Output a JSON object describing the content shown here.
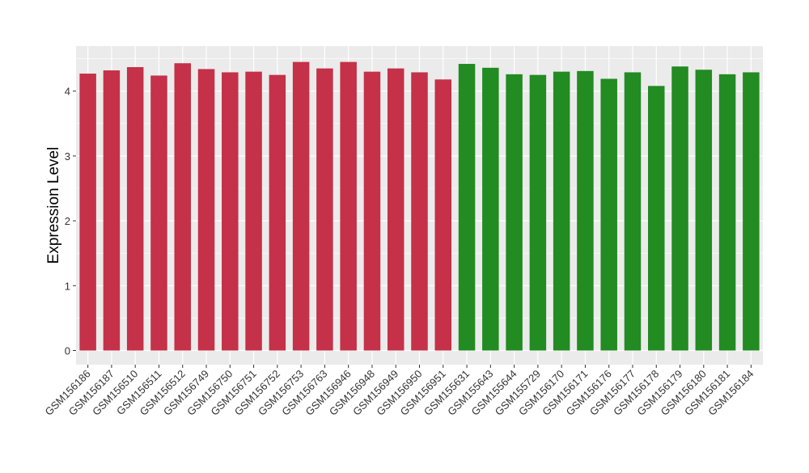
{
  "chart_data": {
    "type": "bar",
    "xlabel": "",
    "ylabel": "Expression Level",
    "ylim": [
      -0.2,
      4.7
    ],
    "yticks": [
      0,
      1,
      2,
      3,
      4
    ],
    "grid": true,
    "legend": "none",
    "categories": [
      "GSM156186",
      "GSM156187",
      "GSM156510",
      "GSM156511",
      "GSM156512",
      "GSM156749",
      "GSM156750",
      "GSM156751",
      "GSM156752",
      "GSM156753",
      "GSM156763",
      "GSM156946",
      "GSM156948",
      "GSM156949",
      "GSM156950",
      "GSM156951",
      "GSM155631",
      "GSM155643",
      "GSM155644",
      "GSM155729",
      "GSM156170",
      "GSM156171",
      "GSM156176",
      "GSM156177",
      "GSM156178",
      "GSM156179",
      "GSM156180",
      "GSM156181",
      "GSM156184"
    ],
    "values": [
      4.27,
      4.32,
      4.37,
      4.24,
      4.43,
      4.34,
      4.29,
      4.3,
      4.25,
      4.45,
      4.35,
      4.45,
      4.3,
      4.35,
      4.29,
      4.18,
      4.42,
      4.36,
      4.26,
      4.25,
      4.3,
      4.31,
      4.19,
      4.29,
      4.08,
      4.38,
      4.33,
      4.26,
      4.29
    ],
    "group_sizes": [
      16,
      13
    ],
    "colors": [
      "#c43148",
      "#228b22"
    ],
    "panel_background": "#ebebeb",
    "gridline_color": "#ffffff"
  }
}
